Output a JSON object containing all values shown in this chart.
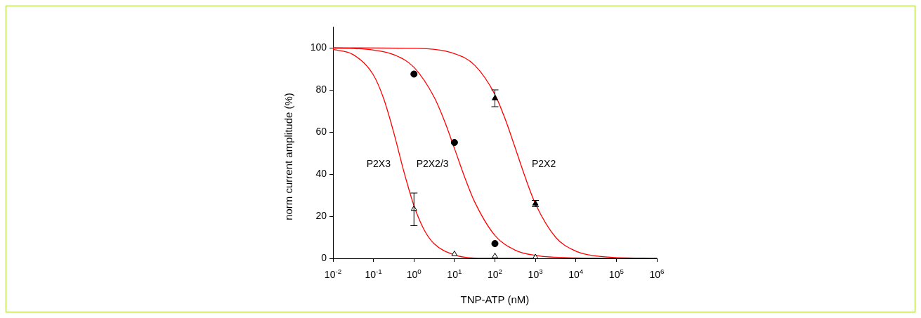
{
  "chart_data": {
    "type": "line",
    "xlabel": "TNP-ATP (nM)",
    "ylabel": "norm current amplitude (%)",
    "log": "x",
    "grid": false,
    "legend": false,
    "xlim": [
      0.01,
      1000000
    ],
    "ylim": [
      0,
      110
    ],
    "xticks": [
      {
        "value": 0.01,
        "label": "10$^{-2}$"
      },
      {
        "value": 0.1,
        "label": "10$^{-1}$"
      },
      {
        "value": 1,
        "label": "10$^{0}$"
      },
      {
        "value": 10,
        "label": "10$^{1}$"
      },
      {
        "value": 100,
        "label": "10$^{2}$"
      },
      {
        "value": 1000,
        "label": "10$^{3}$"
      },
      {
        "value": 10000,
        "label": "10$^{4}$"
      },
      {
        "value": 100000,
        "label": "10$^{5}$"
      },
      {
        "value": 1000000,
        "label": "10$^{6}$"
      }
    ],
    "yticks": [
      0,
      20,
      40,
      60,
      80,
      100
    ],
    "series": [
      {
        "name": "P2X3",
        "color": "#ff0000",
        "marker": "none",
        "x": [
          0.01,
          0.0316,
          0.1,
          0.178,
          0.316,
          0.562,
          1,
          1.778,
          3.162,
          10,
          31.62,
          100,
          1000
        ],
        "values": [
          99.2,
          96.7,
          87,
          75.9,
          59.8,
          41.3,
          25,
          13.6,
          6.9,
          1.6,
          0.1,
          0,
          0
        ]
      },
      {
        "name": "P2X2/3",
        "color": "#ff0000",
        "marker": "none",
        "x": [
          0.01,
          0.1,
          0.316,
          1,
          3.162,
          5.623,
          10,
          17.78,
          31.62,
          100,
          316.2,
          1000,
          10000,
          100000
        ],
        "values": [
          99.9,
          98.9,
          96.7,
          90.7,
          76.5,
          65.4,
          52.2,
          38.7,
          26.8,
          10.9,
          3.9,
          1.4,
          0.2,
          0
        ]
      },
      {
        "name": "P2X2",
        "color": "#ff0000",
        "marker": "none",
        "x": [
          0.01,
          1,
          10,
          31.62,
          100,
          177.8,
          316.2,
          562.3,
          1000,
          3162,
          10000,
          31623,
          100000,
          1000000
        ],
        "values": [
          100,
          99.7,
          97.2,
          91.7,
          77.8,
          66.3,
          52.5,
          38.4,
          25.9,
          10,
          3.4,
          1.1,
          0.4,
          0
        ]
      },
      {
        "type": "scatter",
        "color": "#ffffff",
        "marker": "triangle",
        "x": [
          1,
          10,
          100,
          1000
        ],
        "values": [
          23.5,
          2,
          1,
          0.5
        ],
        "errors": [
          [
            15.5,
            31
          ],
          null,
          null,
          null
        ]
      },
      {
        "type": "scatter",
        "color": "#000000",
        "marker": "circle",
        "x": [
          1,
          10,
          100
        ],
        "values": [
          87.5,
          55,
          7
        ]
      },
      {
        "type": "scatter",
        "color": "#000000",
        "marker": "triangle",
        "x": [
          100,
          1000
        ],
        "values": [
          76,
          26
        ],
        "errors": [
          [
            72,
            80
          ],
          [
            24.5,
            27.5
          ]
        ]
      }
    ]
  }
}
